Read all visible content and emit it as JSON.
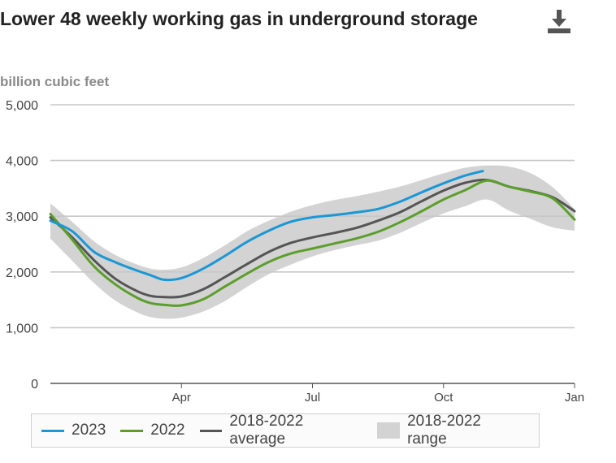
{
  "header": {
    "title": "Lower 48 weekly working gas in underground storage",
    "download_icon": "download-icon"
  },
  "colors": {
    "series_2023": "#1a97d5",
    "series_2022": "#5c9e2b",
    "series_avg": "#555555",
    "range_fill": "#d3d3d3",
    "grid": "#c8c8c8"
  },
  "chart_data": {
    "type": "line",
    "title": "Lower 48 weekly working gas in underground storage",
    "ylabel": "billion cubic feet",
    "xlabel": "",
    "ylim": [
      0,
      5000
    ],
    "xlim": [
      0,
      12
    ],
    "yticks": [
      0,
      1000,
      2000,
      3000,
      4000,
      5000
    ],
    "ytick_labels": [
      "0",
      "1,000",
      "2,000",
      "3,000",
      "4,000",
      "5,000"
    ],
    "xticks": [
      {
        "label": "Apr",
        "month": 3
      },
      {
        "label": "Jul",
        "month": 6
      },
      {
        "label": "Oct",
        "month": 9
      },
      {
        "label": "Jan",
        "month": 12
      }
    ],
    "grid": true,
    "legend_position": "bottom",
    "legend": [
      "2023",
      "2022",
      "2018-2022 average",
      "2018-2022 range"
    ],
    "range": {
      "name": "2018-2022 range",
      "x": [
        0.0,
        0.5,
        1.0,
        1.5,
        2.0,
        2.3,
        2.6,
        3.0,
        3.5,
        4.0,
        4.5,
        5.0,
        5.5,
        6.0,
        6.5,
        7.0,
        7.5,
        8.0,
        8.5,
        9.0,
        9.5,
        10.0,
        10.5,
        11.0,
        11.5,
        12.0
      ],
      "upper": [
        3230,
        2900,
        2550,
        2300,
        2130,
        2060,
        2040,
        2080,
        2250,
        2480,
        2730,
        2920,
        3080,
        3200,
        3290,
        3360,
        3440,
        3530,
        3650,
        3770,
        3870,
        3910,
        3890,
        3770,
        3520,
        3130
      ],
      "lower": [
        2600,
        2200,
        1800,
        1480,
        1270,
        1190,
        1160,
        1180,
        1290,
        1480,
        1730,
        1960,
        2130,
        2280,
        2390,
        2480,
        2560,
        2700,
        2880,
        3050,
        3180,
        3300,
        3100,
        2950,
        2800,
        2740
      ]
    },
    "series": [
      {
        "name": "2023",
        "x": [
          0.0,
          0.5,
          1.0,
          1.5,
          2.0,
          2.3,
          2.6,
          3.0,
          3.5,
          4.0,
          4.5,
          5.0,
          5.5,
          6.0,
          6.5,
          7.0,
          7.5,
          8.0,
          8.5,
          9.0,
          9.5,
          9.9
        ],
        "values": [
          2920,
          2730,
          2360,
          2170,
          2020,
          1940,
          1860,
          1890,
          2060,
          2290,
          2540,
          2740,
          2900,
          2980,
          3020,
          3070,
          3130,
          3260,
          3430,
          3590,
          3730,
          3810
        ]
      },
      {
        "name": "2022",
        "x": [
          0.0,
          0.5,
          1.0,
          1.5,
          2.0,
          2.3,
          2.6,
          3.0,
          3.5,
          4.0,
          4.5,
          5.0,
          5.5,
          6.0,
          6.5,
          7.0,
          7.5,
          8.0,
          8.5,
          9.0,
          9.5,
          10.0,
          10.5,
          11.0,
          11.5,
          12.0
        ],
        "values": [
          3040,
          2580,
          2100,
          1770,
          1530,
          1440,
          1410,
          1400,
          1510,
          1740,
          1970,
          2180,
          2330,
          2420,
          2510,
          2600,
          2720,
          2890,
          3090,
          3300,
          3470,
          3640,
          3530,
          3440,
          3320,
          2940
        ]
      },
      {
        "name": "2018-2022 average",
        "x": [
          0.0,
          0.5,
          1.0,
          1.5,
          2.0,
          2.3,
          2.6,
          3.0,
          3.5,
          4.0,
          4.5,
          5.0,
          5.5,
          6.0,
          6.5,
          7.0,
          7.5,
          8.0,
          8.5,
          9.0,
          9.5,
          10.0,
          10.5,
          11.0,
          11.5,
          12.0
        ],
        "values": [
          2980,
          2620,
          2210,
          1870,
          1650,
          1570,
          1550,
          1560,
          1690,
          1910,
          2140,
          2360,
          2520,
          2620,
          2700,
          2790,
          2920,
          3070,
          3270,
          3460,
          3600,
          3650,
          3530,
          3450,
          3340,
          3090
        ]
      }
    ]
  }
}
